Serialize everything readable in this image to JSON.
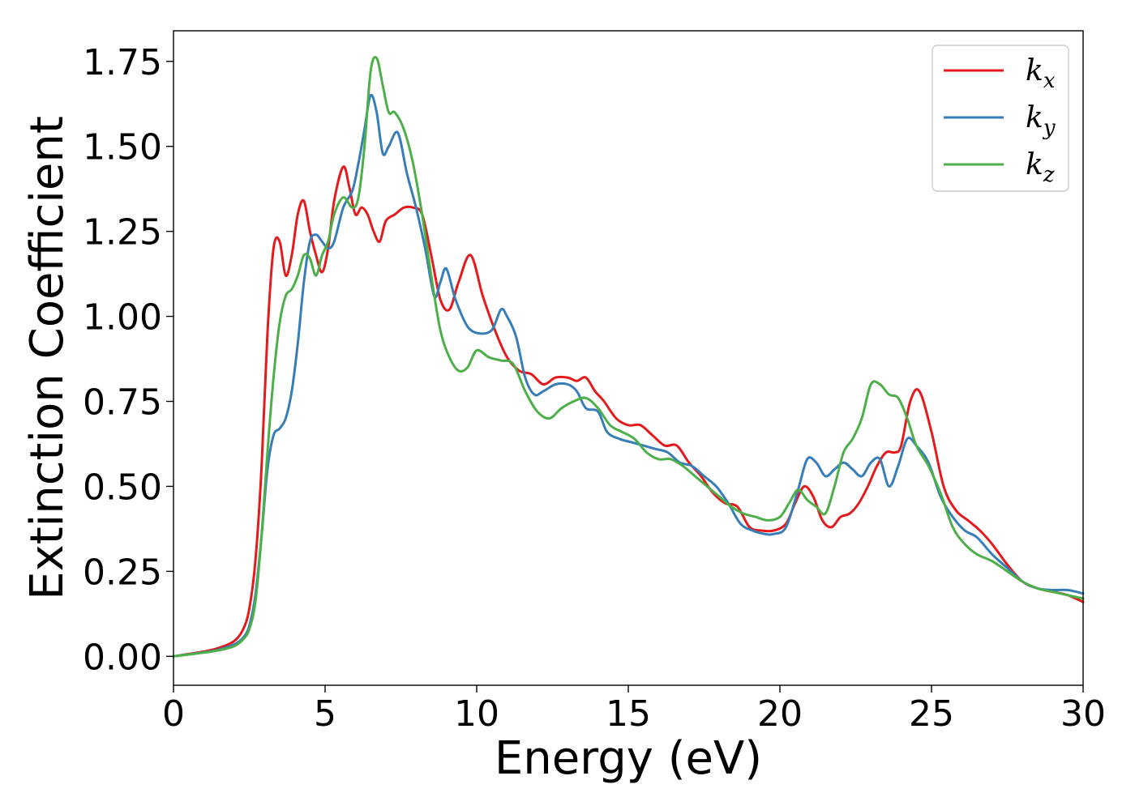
{
  "chart_data": {
    "type": "line",
    "title": "",
    "xlabel": "Energy (eV)",
    "ylabel": "Extinction Coefficient",
    "xlim": [
      0,
      30
    ],
    "ylim": [
      -0.085,
      1.84
    ],
    "xticks": [
      0,
      5,
      10,
      15,
      20,
      25,
      30
    ],
    "xtick_labels": [
      "0",
      "5",
      "10",
      "15",
      "20",
      "25",
      "30"
    ],
    "yticks": [
      0.0,
      0.25,
      0.5,
      0.75,
      1.0,
      1.25,
      1.5,
      1.75
    ],
    "ytick_labels": [
      "0.00",
      "0.25",
      "0.50",
      "0.75",
      "1.00",
      "1.25",
      "1.50",
      "1.75"
    ],
    "grid": false,
    "legend_position": "top-right",
    "series": [
      {
        "name": "kx",
        "legend_base": "k",
        "legend_sub": "x",
        "color": "#e41a1c",
        "x": [
          0,
          1,
          1.5,
          2,
          2.3,
          2.5,
          2.7,
          2.9,
          3.1,
          3.3,
          3.5,
          3.7,
          3.9,
          4.1,
          4.3,
          4.5,
          4.7,
          4.9,
          5.1,
          5.3,
          5.6,
          5.8,
          6.0,
          6.2,
          6.4,
          6.6,
          6.8,
          7.0,
          7.3,
          7.6,
          7.9,
          8.2,
          8.5,
          8.8,
          9.1,
          9.4,
          9.8,
          10.2,
          10.6,
          11.0,
          11.4,
          11.8,
          12.2,
          12.6,
          13.0,
          13.3,
          13.6,
          13.9,
          14.2,
          14.6,
          15.0,
          15.4,
          15.8,
          16.2,
          16.6,
          17.0,
          17.4,
          17.8,
          18.2,
          18.6,
          19.0,
          19.4,
          19.8,
          20.2,
          20.5,
          20.8,
          21.1,
          21.4,
          21.7,
          22.0,
          22.3,
          22.6,
          22.9,
          23.2,
          23.5,
          23.8,
          24.0,
          24.3,
          24.6,
          25.0,
          25.4,
          25.8,
          26.2,
          26.6,
          27.0,
          27.5,
          28.0,
          28.5,
          29.0,
          29.5,
          30.0
        ],
        "y": [
          0.0,
          0.014,
          0.025,
          0.045,
          0.08,
          0.14,
          0.28,
          0.55,
          0.95,
          1.2,
          1.22,
          1.12,
          1.18,
          1.3,
          1.34,
          1.25,
          1.18,
          1.13,
          1.2,
          1.34,
          1.44,
          1.38,
          1.3,
          1.32,
          1.3,
          1.25,
          1.22,
          1.28,
          1.3,
          1.32,
          1.32,
          1.3,
          1.18,
          1.05,
          1.02,
          1.1,
          1.18,
          1.06,
          0.96,
          0.88,
          0.84,
          0.83,
          0.8,
          0.82,
          0.82,
          0.81,
          0.82,
          0.78,
          0.75,
          0.7,
          0.68,
          0.68,
          0.65,
          0.62,
          0.62,
          0.57,
          0.53,
          0.48,
          0.45,
          0.44,
          0.38,
          0.37,
          0.37,
          0.39,
          0.45,
          0.5,
          0.47,
          0.4,
          0.38,
          0.41,
          0.42,
          0.45,
          0.5,
          0.56,
          0.6,
          0.6,
          0.62,
          0.75,
          0.78,
          0.66,
          0.5,
          0.43,
          0.4,
          0.37,
          0.33,
          0.27,
          0.22,
          0.2,
          0.19,
          0.18,
          0.16
        ]
      },
      {
        "name": "ky",
        "legend_base": "k",
        "legend_sub": "y",
        "color": "#377eb8",
        "x": [
          0,
          1,
          1.5,
          2,
          2.3,
          2.5,
          2.7,
          2.9,
          3.1,
          3.3,
          3.5,
          3.7,
          3.9,
          4.1,
          4.3,
          4.5,
          4.7,
          4.9,
          5.1,
          5.3,
          5.6,
          5.9,
          6.1,
          6.3,
          6.5,
          6.7,
          6.9,
          7.1,
          7.4,
          7.7,
          8.0,
          8.3,
          8.6,
          8.8,
          9.0,
          9.3,
          9.7,
          10.1,
          10.5,
          10.8,
          11.0,
          11.3,
          11.6,
          11.9,
          12.2,
          12.6,
          13.0,
          13.3,
          13.6,
          14.0,
          14.3,
          14.7,
          15.1,
          15.5,
          15.9,
          16.3,
          16.7,
          17.1,
          17.5,
          17.9,
          18.3,
          18.7,
          19.1,
          19.5,
          19.8,
          20.2,
          20.6,
          20.9,
          21.2,
          21.5,
          21.8,
          22.1,
          22.4,
          22.7,
          23.0,
          23.3,
          23.6,
          23.9,
          24.2,
          24.5,
          24.9,
          25.3,
          25.7,
          26.1,
          26.5,
          27.0,
          27.5,
          28.0,
          28.5,
          29.0,
          29.5,
          30.0
        ],
        "y": [
          0.0,
          0.012,
          0.02,
          0.035,
          0.055,
          0.09,
          0.18,
          0.35,
          0.55,
          0.65,
          0.67,
          0.7,
          0.78,
          0.92,
          1.1,
          1.22,
          1.24,
          1.22,
          1.2,
          1.22,
          1.32,
          1.37,
          1.45,
          1.55,
          1.65,
          1.6,
          1.48,
          1.5,
          1.54,
          1.42,
          1.32,
          1.2,
          1.06,
          1.1,
          1.14,
          1.05,
          0.97,
          0.95,
          0.96,
          1.02,
          1.0,
          0.94,
          0.82,
          0.77,
          0.78,
          0.8,
          0.8,
          0.78,
          0.73,
          0.72,
          0.66,
          0.64,
          0.63,
          0.62,
          0.61,
          0.6,
          0.57,
          0.56,
          0.53,
          0.5,
          0.45,
          0.39,
          0.37,
          0.36,
          0.36,
          0.38,
          0.49,
          0.58,
          0.57,
          0.53,
          0.55,
          0.57,
          0.55,
          0.53,
          0.57,
          0.58,
          0.5,
          0.56,
          0.64,
          0.62,
          0.57,
          0.47,
          0.41,
          0.37,
          0.35,
          0.3,
          0.26,
          0.22,
          0.2,
          0.195,
          0.195,
          0.185
        ]
      },
      {
        "name": "kz",
        "legend_base": "k",
        "legend_sub": "z",
        "color": "#4daf4a",
        "x": [
          0,
          1,
          1.5,
          2,
          2.3,
          2.5,
          2.7,
          2.9,
          3.1,
          3.3,
          3.5,
          3.7,
          3.9,
          4.1,
          4.3,
          4.5,
          4.7,
          4.9,
          5.1,
          5.3,
          5.6,
          5.9,
          6.1,
          6.3,
          6.5,
          6.7,
          6.9,
          7.1,
          7.3,
          7.6,
          7.9,
          8.2,
          8.5,
          8.8,
          9.1,
          9.4,
          9.7,
          10.0,
          10.4,
          10.8,
          11.2,
          11.6,
          12.0,
          12.4,
          12.8,
          13.2,
          13.6,
          14.0,
          14.4,
          14.8,
          15.2,
          15.6,
          16.0,
          16.4,
          16.8,
          17.2,
          17.6,
          18.0,
          18.4,
          18.8,
          19.2,
          19.6,
          20.0,
          20.3,
          20.6,
          20.9,
          21.2,
          21.5,
          21.8,
          22.1,
          22.4,
          22.7,
          23.0,
          23.3,
          23.6,
          23.9,
          24.2,
          24.5,
          24.9,
          25.3,
          25.7,
          26.1,
          26.5,
          27.0,
          27.5,
          28.0,
          28.5,
          29.0,
          29.5,
          30.0
        ],
        "y": [
          0.0,
          0.011,
          0.018,
          0.03,
          0.05,
          0.08,
          0.16,
          0.35,
          0.6,
          0.82,
          0.98,
          1.06,
          1.08,
          1.12,
          1.18,
          1.17,
          1.12,
          1.18,
          1.22,
          1.3,
          1.35,
          1.32,
          1.35,
          1.5,
          1.72,
          1.76,
          1.68,
          1.6,
          1.6,
          1.55,
          1.45,
          1.3,
          1.12,
          0.96,
          0.88,
          0.84,
          0.85,
          0.9,
          0.88,
          0.87,
          0.86,
          0.78,
          0.72,
          0.7,
          0.73,
          0.75,
          0.76,
          0.73,
          0.68,
          0.66,
          0.64,
          0.6,
          0.58,
          0.58,
          0.56,
          0.53,
          0.5,
          0.47,
          0.44,
          0.42,
          0.41,
          0.4,
          0.41,
          0.45,
          0.49,
          0.46,
          0.44,
          0.42,
          0.5,
          0.6,
          0.64,
          0.7,
          0.8,
          0.8,
          0.77,
          0.76,
          0.7,
          0.62,
          0.56,
          0.48,
          0.38,
          0.33,
          0.3,
          0.28,
          0.25,
          0.22,
          0.2,
          0.19,
          0.18,
          0.17
        ]
      }
    ]
  }
}
